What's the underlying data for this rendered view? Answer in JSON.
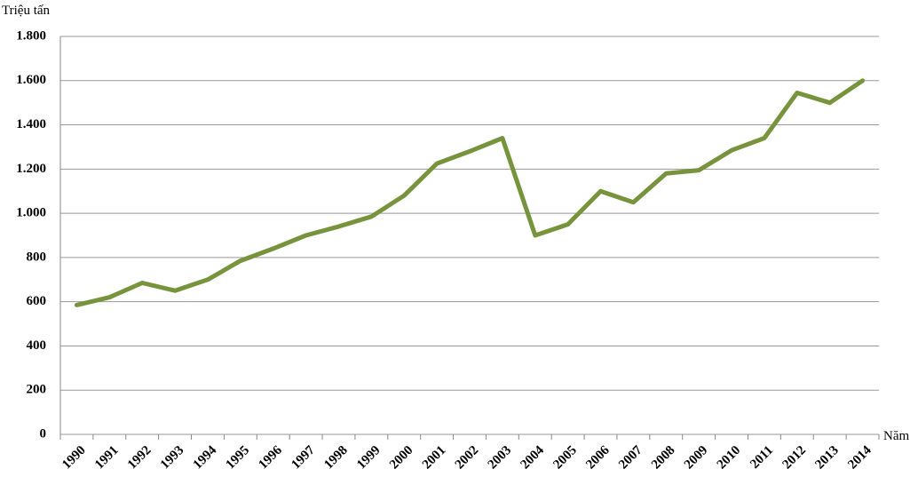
{
  "chart_data": {
    "type": "line",
    "y_label": "Triệu tấn",
    "x_label": "Năm",
    "categories": [
      "1990",
      "1991",
      "1992",
      "1993",
      "1994",
      "1995",
      "1996",
      "1997",
      "1998",
      "1999",
      "2000",
      "2001",
      "2002",
      "2003",
      "2004",
      "2005",
      "2006",
      "2007",
      "2008",
      "2009",
      "2010",
      "2011",
      "2012",
      "2013",
      "2014"
    ],
    "values": [
      585,
      620,
      685,
      650,
      700,
      785,
      840,
      900,
      940,
      985,
      1080,
      1225,
      1280,
      1340,
      900,
      950,
      1100,
      1050,
      1180,
      1195,
      1285,
      1340,
      1545,
      1500,
      1600
    ],
    "color": "#77933c",
    "ylim": [
      0,
      1800
    ],
    "yticks": [
      0,
      200,
      400,
      600,
      800,
      {
        "value": 1000,
        "label": "1.000"
      },
      {
        "value": 1200,
        "label": "1.200"
      },
      {
        "value": 1400,
        "label": "1.400"
      },
      {
        "value": 1600,
        "label": "1.600"
      },
      {
        "value": 1800,
        "label": "1.800"
      }
    ],
    "grid": true
  }
}
